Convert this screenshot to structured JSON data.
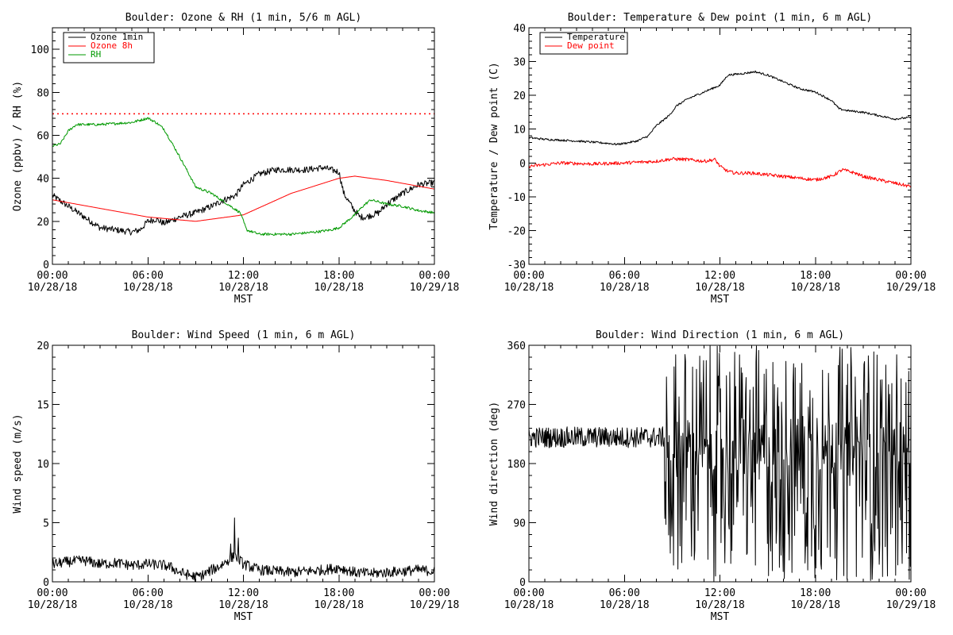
{
  "chart_data": [
    {
      "id": "ozone",
      "type": "line",
      "title": "Boulder: Ozone & RH (1 min, 5/6 m AGL)",
      "xlabel": "MST",
      "ylabel": "Ozone (ppbv) / RH (%)",
      "xlim": [
        "10/28/18 00:00",
        "10/29/18 00:00"
      ],
      "ylim": [
        0,
        110
      ],
      "yticks": [
        0,
        20,
        40,
        60,
        80,
        100
      ],
      "xtick_times": [
        "00:00",
        "06:00",
        "12:00",
        "18:00",
        "00:00"
      ],
      "xtick_dates": [
        "10/28/18",
        "10/28/18",
        "10/28/18",
        "10/28/18",
        "10/29/18"
      ],
      "legend_position": "top-left",
      "reference_line": {
        "y": 70,
        "style": "dotted",
        "color": "#ff0000"
      },
      "series": [
        {
          "name": "Ozone 1min",
          "color": "#000000",
          "noise": 1.5,
          "x": [
            0,
            1,
            2,
            3,
            4,
            5,
            5.5,
            6,
            6.5,
            7,
            8,
            9,
            10,
            10.8,
            11.5,
            12,
            13,
            14,
            15,
            16,
            17,
            17.5,
            18,
            18.3,
            18.8,
            19.3,
            19.7,
            20.5,
            21,
            22,
            23,
            24
          ],
          "y": [
            32,
            27,
            22,
            17,
            16,
            15,
            16,
            20,
            21,
            19,
            22,
            24,
            27,
            30,
            32,
            37,
            42,
            44,
            44,
            44,
            45,
            44,
            43,
            33,
            27,
            22,
            22,
            24,
            28,
            33,
            37,
            38
          ]
        },
        {
          "name": "Ozone 8h",
          "color": "#ff0000",
          "noise": 0,
          "x": [
            0,
            3,
            6,
            9,
            12,
            15,
            18,
            19,
            21,
            24
          ],
          "y": [
            30,
            26,
            22,
            20,
            23,
            33,
            40,
            41,
            39,
            35
          ]
        },
        {
          "name": "RH",
          "color": "#009900",
          "noise": 0.6,
          "x": [
            0,
            0.5,
            1,
            1.5,
            3,
            5,
            6,
            6.5,
            7,
            8,
            9,
            10,
            11,
            11.8,
            12.2,
            13,
            15,
            16.5,
            17.5,
            18,
            18.5,
            19,
            19.5,
            20,
            21,
            22,
            23,
            24
          ],
          "y": [
            55,
            56,
            62,
            65,
            65,
            66,
            68,
            66,
            63,
            50,
            36,
            33,
            28,
            24,
            16,
            14,
            14,
            15,
            16,
            17,
            20,
            23,
            27,
            30,
            28,
            27,
            25,
            24
          ]
        }
      ]
    },
    {
      "id": "temp",
      "type": "line",
      "title": "Boulder: Temperature & Dew point (1 min, 6 m AGL)",
      "xlabel": "MST",
      "ylabel": "Temperature / Dew point (C)",
      "xlim": [
        "10/28/18 00:00",
        "10/29/18 00:00"
      ],
      "ylim": [
        -30,
        40
      ],
      "yticks": [
        -30,
        -20,
        -10,
        0,
        10,
        20,
        30,
        40
      ],
      "xtick_times": [
        "00:00",
        "06:00",
        "12:00",
        "18:00",
        "00:00"
      ],
      "xtick_dates": [
        "10/28/18",
        "10/28/18",
        "10/28/18",
        "10/28/18",
        "10/29/18"
      ],
      "legend_position": "top-left",
      "series": [
        {
          "name": "Temperature",
          "color": "#000000",
          "noise": 0.3,
          "x": [
            0,
            1,
            3,
            5,
            5.5,
            6,
            6.8,
            7.5,
            8,
            8.8,
            9.3,
            10,
            11,
            12,
            12.5,
            13.5,
            14.2,
            15,
            16,
            17,
            18,
            19,
            19.5,
            20,
            21,
            22,
            23,
            24
          ],
          "y": [
            7.5,
            7,
            6.5,
            5.8,
            5.5,
            5.8,
            6.5,
            8,
            11,
            14,
            17,
            19,
            21,
            23,
            26,
            26.5,
            27,
            26,
            24,
            22,
            21,
            18.5,
            16,
            15.5,
            15,
            14,
            13,
            13.5
          ]
        },
        {
          "name": "Dew point",
          "color": "#ff0000",
          "noise": 0.5,
          "x": [
            0,
            1,
            2,
            4,
            6,
            8,
            9,
            10,
            11,
            11.7,
            12,
            12.5,
            13,
            14,
            15,
            16,
            17,
            18,
            19,
            19.7,
            20.5,
            21,
            22,
            23,
            24
          ],
          "y": [
            -1,
            -0.5,
            0,
            -0.3,
            0,
            0.5,
            1.2,
            1,
            0.5,
            1,
            -1,
            -2.5,
            -3,
            -3,
            -3.5,
            -4,
            -4.5,
            -5,
            -4,
            -2,
            -3,
            -4,
            -5,
            -6,
            -7
          ]
        }
      ]
    },
    {
      "id": "wspd",
      "type": "line",
      "title": "Boulder: Wind Speed (1 min, 6 m AGL)",
      "xlabel": "MST",
      "ylabel": "Wind speed (m/s)",
      "xlim": [
        "10/28/18 00:00",
        "10/29/18 00:00"
      ],
      "ylim": [
        0,
        20
      ],
      "yticks": [
        0,
        5,
        10,
        15,
        20
      ],
      "xtick_times": [
        "00:00",
        "06:00",
        "12:00",
        "18:00",
        "00:00"
      ],
      "xtick_dates": [
        "10/28/18",
        "10/28/18",
        "10/28/18",
        "10/28/18",
        "10/29/18"
      ],
      "series": [
        {
          "color": "#000000",
          "noise": 0.45,
          "x": [
            0,
            1,
            2,
            3,
            4,
            5,
            6,
            7,
            7.5,
            8,
            8.5,
            9,
            9.5,
            10,
            10.5,
            11,
            11.5,
            12,
            13,
            14,
            15,
            16,
            17,
            18,
            19,
            20,
            21,
            22,
            23,
            24
          ],
          "y": [
            1.5,
            1.7,
            1.8,
            1.5,
            1.6,
            1.4,
            1.5,
            1.4,
            1.2,
            0.8,
            0.6,
            0.4,
            0.6,
            1.0,
            1.3,
            1.8,
            2.2,
            1.5,
            1.0,
            0.9,
            0.8,
            0.9,
            1.0,
            1.2,
            0.8,
            0.7,
            0.8,
            0.9,
            1.0,
            0.9
          ]
        }
      ],
      "peaks": [
        {
          "x": 11.45,
          "y": 5.4
        },
        {
          "x": 11.7,
          "y": 3.7
        },
        {
          "x": 11.2,
          "y": 3.2
        }
      ]
    },
    {
      "id": "wdir",
      "type": "line",
      "title": "Boulder: Wind Direction (1 min, 6 m AGL)",
      "xlabel": "MST",
      "ylabel": "Wind direction (deg)",
      "xlim": [
        "10/28/18 00:00",
        "10/29/18 00:00"
      ],
      "ylim": [
        0,
        360
      ],
      "yticks": [
        0,
        90,
        180,
        270,
        360
      ],
      "xtick_times": [
        "00:00",
        "06:00",
        "12:00",
        "18:00",
        "00:00"
      ],
      "xtick_dates": [
        "10/28/18",
        "10/28/18",
        "10/28/18",
        "10/28/18",
        "10/29/18"
      ],
      "series": [
        {
          "color": "#000000",
          "calm_until": 8.5,
          "calm_mean": 220,
          "calm_noise": 16,
          "chaotic_from": 8.5,
          "chaotic_range": [
            0,
            360
          ]
        }
      ]
    }
  ]
}
